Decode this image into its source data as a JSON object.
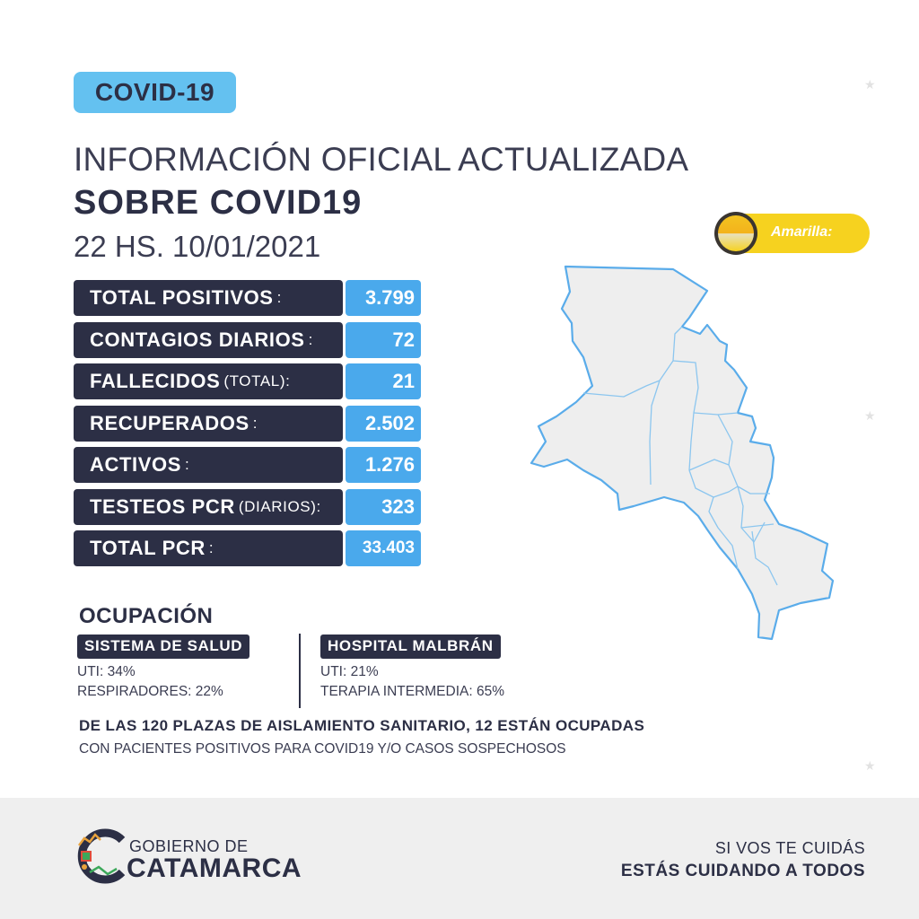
{
  "badge": {
    "label": "COVID-19"
  },
  "header": {
    "line1": "INFORMACIÓN OFICIAL ACTUALIZADA",
    "line2": "SOBRE COVID19",
    "datetime": "22 HS. 10/01/2021"
  },
  "alert": {
    "label": "Amarilla:",
    "color": "#f6d21f"
  },
  "stats": [
    {
      "label": "TOTAL POSITIVOS",
      "suffix": ":",
      "value": "3.799"
    },
    {
      "label": "CONTAGIOS DIARIOS",
      "suffix": ":",
      "value": "72"
    },
    {
      "label": "FALLECIDOS",
      "suffix": "(TOTAL):",
      "value": "21"
    },
    {
      "label": "RECUPERADOS",
      "suffix": ":",
      "value": "2.502"
    },
    {
      "label": "ACTIVOS",
      "suffix": ":",
      "value": "1.276"
    },
    {
      "label": "TESTEOS PCR",
      "suffix": "(DIARIOS):",
      "value": "323"
    },
    {
      "label": "TOTAL PCR",
      "suffix": ":",
      "value": "33.403"
    }
  ],
  "occupancy": {
    "heading": "OCUPACIÓN",
    "left": {
      "tag": "SISTEMA DE SALUD",
      "line1": "UTI: 34%",
      "line2": "RESPIRADORES: 22%"
    },
    "right": {
      "tag": "HOSPITAL MALBRÁN",
      "line1": "UTI: 21%",
      "line2": "TERAPIA INTERMEDIA: 65%"
    }
  },
  "plazas": {
    "main": "DE LAS 120 PLAZAS DE AISLAMIENTO SANITARIO, 12 ESTÁN OCUPADAS",
    "sub": "CON PACIENTES POSITIVOS PARA COVID19 Y/O CASOS SOSPECHOSOS"
  },
  "footer": {
    "gob_top": "GOBIERNO DE",
    "gob_bottom": "CATAMARCA",
    "slogan1": "SI VOS TE CUIDÁS",
    "slogan2": "ESTÁS CUIDANDO A TODOS"
  },
  "colors": {
    "navy": "#2c2f45",
    "blue": "#4aa9ec",
    "light_blue": "#64c1f0",
    "yellow": "#f6d21f",
    "map_fill": "#eeeeee",
    "map_stroke": "#5aacea"
  },
  "icons": {
    "map": "catamarca-province-map",
    "alert": "sun-half-icon",
    "logo": "catamarca-c-logo"
  }
}
